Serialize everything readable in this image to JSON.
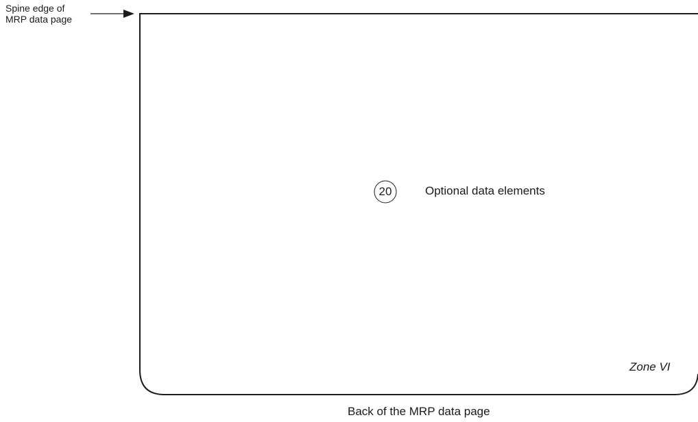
{
  "spine_label": {
    "line1": "Spine edge of",
    "line2": "MRP data page"
  },
  "element": {
    "number": "20",
    "label": "Optional data elements"
  },
  "zone_label": "Zone VI",
  "caption": "Back of the MRP data page",
  "colors": {
    "line": "#1a1a1a",
    "background": "#ffffff"
  }
}
